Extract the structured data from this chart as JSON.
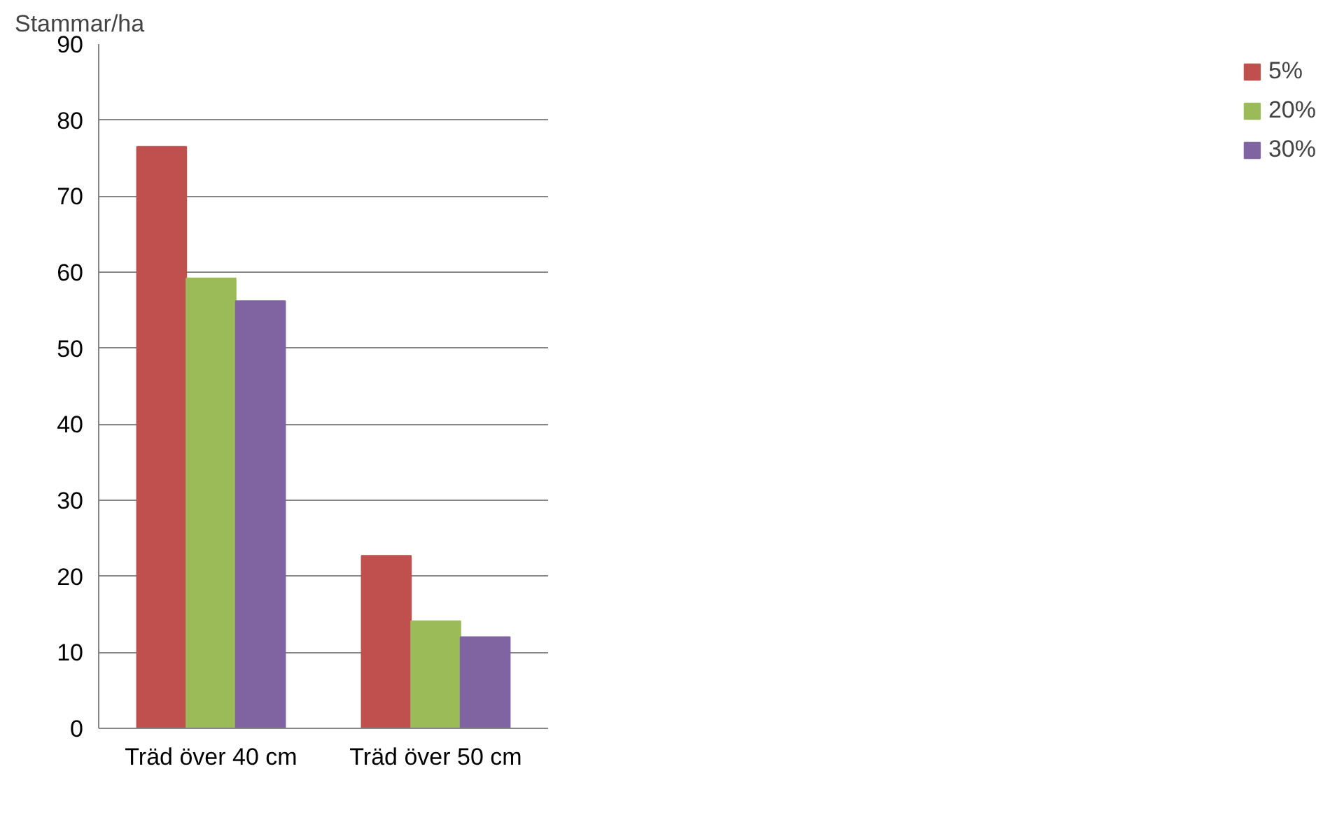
{
  "chart_data": {
    "type": "bar",
    "ylabel": "Stammar/ha",
    "categories": [
      "Träd över 40 cm",
      "Träd över 50 cm"
    ],
    "series": [
      {
        "name": "5%",
        "color": "#c0504d",
        "values": [
          76.5,
          22.7
        ]
      },
      {
        "name": "20%",
        "color": "#9bbb59",
        "values": [
          59.2,
          14.1
        ]
      },
      {
        "name": "30%",
        "color": "#8064a2",
        "values": [
          56.2,
          12.0
        ]
      }
    ],
    "ylim": [
      0,
      90
    ],
    "yticks": [
      0,
      10,
      20,
      30,
      40,
      50,
      60,
      70,
      80,
      90
    ],
    "grid": "y",
    "legend": "right"
  }
}
